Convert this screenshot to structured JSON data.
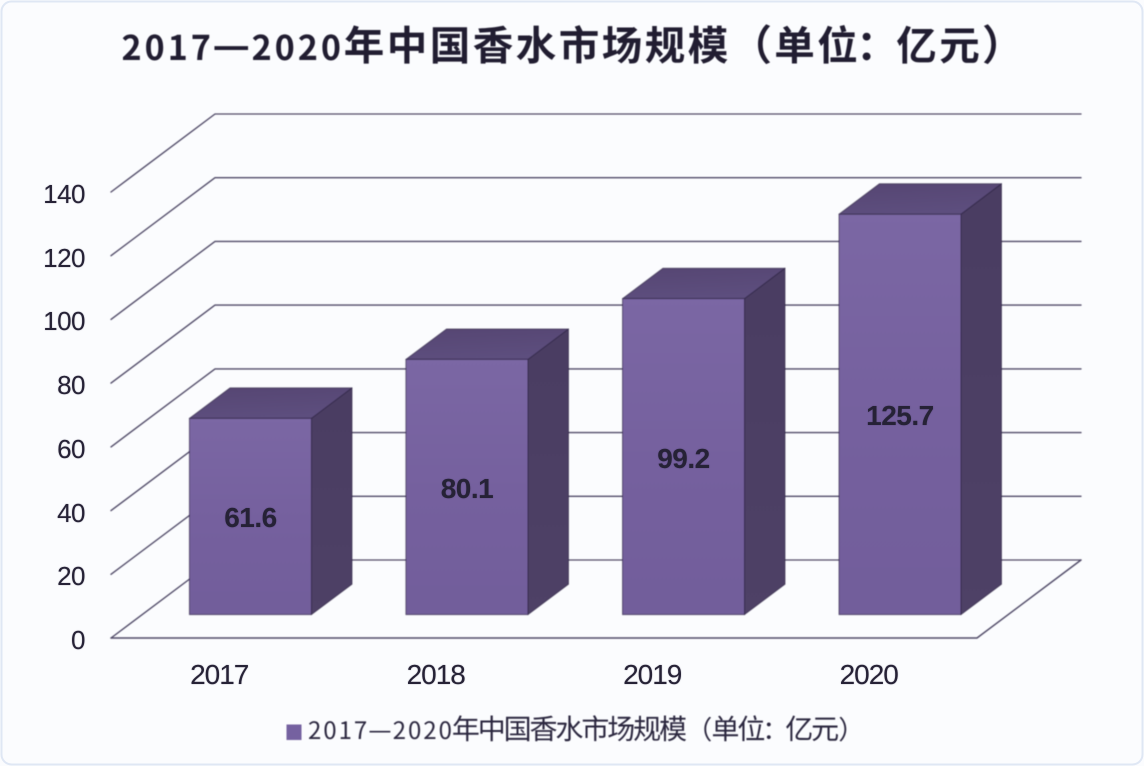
{
  "page": {
    "background_color": "#fbfcfe",
    "frame_border_color": "#d3ddef"
  },
  "chart": {
    "title": "2017—2020年中国香水市场规模（单位：亿元）",
    "legend": {
      "label": "2017—2020年中国香水市场规模（单位：亿元）",
      "marker_color": "#7561a0"
    }
  },
  "chart_data": {
    "type": "bar",
    "subtype": "3d-column",
    "title": "2017—2020年中国香水市场规模（单位：亿元）",
    "categories": [
      "2017",
      "2018",
      "2019",
      "2020"
    ],
    "values": [
      61.6,
      80.1,
      99.2,
      125.7
    ],
    "series": [
      {
        "name": "2017—2020年中国香水市场规模（单位：亿元）",
        "values": [
          61.6,
          80.1,
          99.2,
          125.7
        ]
      }
    ],
    "data_labels": [
      "61.6",
      "80.1",
      "99.2",
      "125.7"
    ],
    "xlabel": "",
    "ylabel": "",
    "ylim": [
      0,
      140
    ],
    "ytick_interval": 20,
    "yticks": [
      "0",
      "20",
      "40",
      "60",
      "80",
      "100",
      "120",
      "140"
    ],
    "grid": true,
    "legend_position": "bottom",
    "colors": {
      "bar_front": "#77629f",
      "bar_top": "#594a78",
      "bar_side": "#4b3f63",
      "gridline": "#514b68",
      "axis_text": "#262236",
      "title_text": "#211d31"
    }
  }
}
